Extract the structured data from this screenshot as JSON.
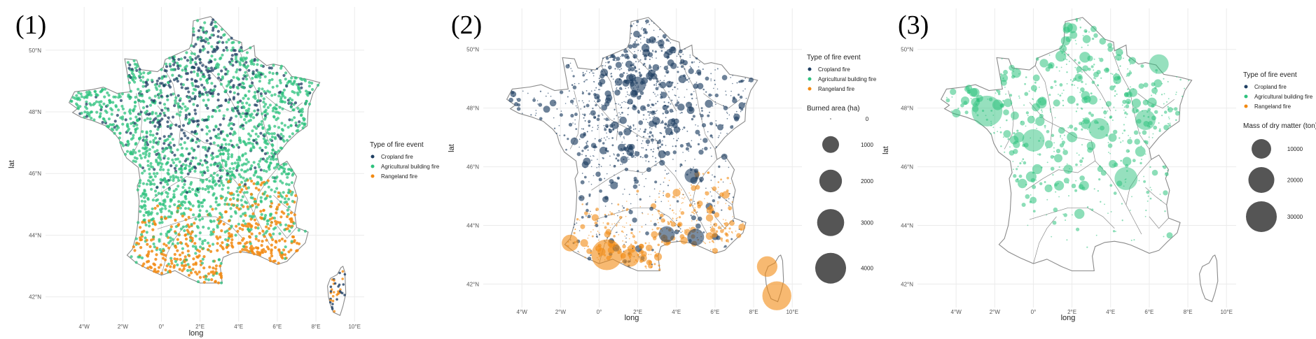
{
  "colors": {
    "cropland": "#1f3f63",
    "agricultural": "#2ec27e",
    "rangeland": "#f28a12",
    "size_key": "#555555",
    "border": "#8a8a8a",
    "grid": "#ebebeb"
  },
  "icons": [
    "france-map",
    "corsica-map"
  ],
  "fire_types": [
    "Cropland fire",
    "Agricultural building fire",
    "Rangeland fire"
  ],
  "axes": {
    "xlabel": "long",
    "ylabel": "lat",
    "x_ticks": [
      "4°W",
      "2°W",
      "0°",
      "2°E",
      "4°E",
      "6°E",
      "8°E",
      "10°E"
    ],
    "y_ticks": [
      "42°N",
      "44°N",
      "46°N",
      "48°N",
      "50°N"
    ],
    "x_values": [
      -4,
      -2,
      0,
      2,
      4,
      6,
      8,
      10
    ],
    "y_values": [
      42,
      44,
      46,
      48,
      50
    ],
    "xlim": [
      -6,
      10.5
    ],
    "ylim": [
      41.2,
      51.4
    ]
  },
  "panels": [
    {
      "label": "(1)",
      "legend_title": "Type of fire event",
      "size_legend_title": "",
      "size_levels": [],
      "size_labels": [],
      "series_shown": [
        "cropland",
        "agricultural",
        "rangeland"
      ],
      "points_note": "dense point map of individual fire events"
    },
    {
      "label": "(2)",
      "legend_title": "Type of fire event",
      "size_legend_title": "Burned area (ha)",
      "size_levels": [
        0,
        1000,
        2000,
        3000,
        4000
      ],
      "size_labels": [
        "0",
        "1000",
        "2000",
        "3000",
        "4000"
      ],
      "series_shown": [
        "cropland",
        "rangeland"
      ]
    },
    {
      "label": "(3)",
      "legend_title": "Type of fire event",
      "size_legend_title": "Mass of dry matter (ton)",
      "size_levels": [
        10000,
        20000,
        30000
      ],
      "size_labels": [
        "10000",
        "20000",
        "30000"
      ],
      "series_shown": [
        "agricultural"
      ]
    }
  ],
  "chart_data": [
    {
      "type": "scatter",
      "title": "",
      "xlabel": "long",
      "ylabel": "lat",
      "xlim": [
        -6,
        10.5
      ],
      "ylim": [
        41.2,
        51.4
      ],
      "legend": "right",
      "series": [
        {
          "name": "Cropland fire",
          "color": "#1f3f63"
        },
        {
          "name": "Agricultural building fire",
          "color": "#2ec27e"
        },
        {
          "name": "Rangeland fire",
          "color": "#f28a12"
        }
      ]
    },
    {
      "type": "scatter",
      "title": "",
      "xlabel": "long",
      "ylabel": "lat",
      "xlim": [
        -6,
        10.5
      ],
      "ylim": [
        41.2,
        51.4
      ],
      "legend": "right",
      "size_variable": "Burned area (ha)",
      "big_events": [
        {
          "type": "rangeland",
          "lon": 0.4,
          "lat": 43.0,
          "value": 4000
        },
        {
          "type": "rangeland",
          "lon": 9.2,
          "lat": 41.6,
          "value": 3500
        },
        {
          "type": "rangeland",
          "lon": -1.5,
          "lat": 43.4,
          "value": 1000
        },
        {
          "type": "rangeland",
          "lon": 8.7,
          "lat": 42.6,
          "value": 1600
        },
        {
          "type": "rangeland",
          "lon": 1.6,
          "lat": 42.9,
          "value": 1200
        },
        {
          "type": "cropland",
          "lon": 5.0,
          "lat": 43.6,
          "value": 1000
        },
        {
          "type": "cropland",
          "lon": 3.5,
          "lat": 43.7,
          "value": 900
        },
        {
          "type": "cropland",
          "lon": 2.0,
          "lat": 48.8,
          "value": 900
        },
        {
          "type": "cropland",
          "lon": 4.8,
          "lat": 45.7,
          "value": 700
        }
      ]
    },
    {
      "type": "scatter",
      "title": "",
      "xlabel": "long",
      "ylabel": "lat",
      "xlim": [
        -6,
        10.5
      ],
      "ylim": [
        41.2,
        51.4
      ],
      "legend": "right",
      "size_variable": "Mass of dry matter (ton)",
      "big_events": [
        {
          "type": "agricultural",
          "lon": -2.4,
          "lat": 47.9,
          "value": 30000
        },
        {
          "type": "agricultural",
          "lon": 4.8,
          "lat": 45.6,
          "value": 15000
        },
        {
          "type": "agricultural",
          "lon": 6.5,
          "lat": 49.5,
          "value": 10000
        },
        {
          "type": "agricultural",
          "lon": 0.0,
          "lat": 46.9,
          "value": 14000
        },
        {
          "type": "agricultural",
          "lon": 3.4,
          "lat": 47.3,
          "value": 12000
        },
        {
          "type": "agricultural",
          "lon": 5.8,
          "lat": 47.6,
          "value": 11000
        }
      ]
    }
  ]
}
